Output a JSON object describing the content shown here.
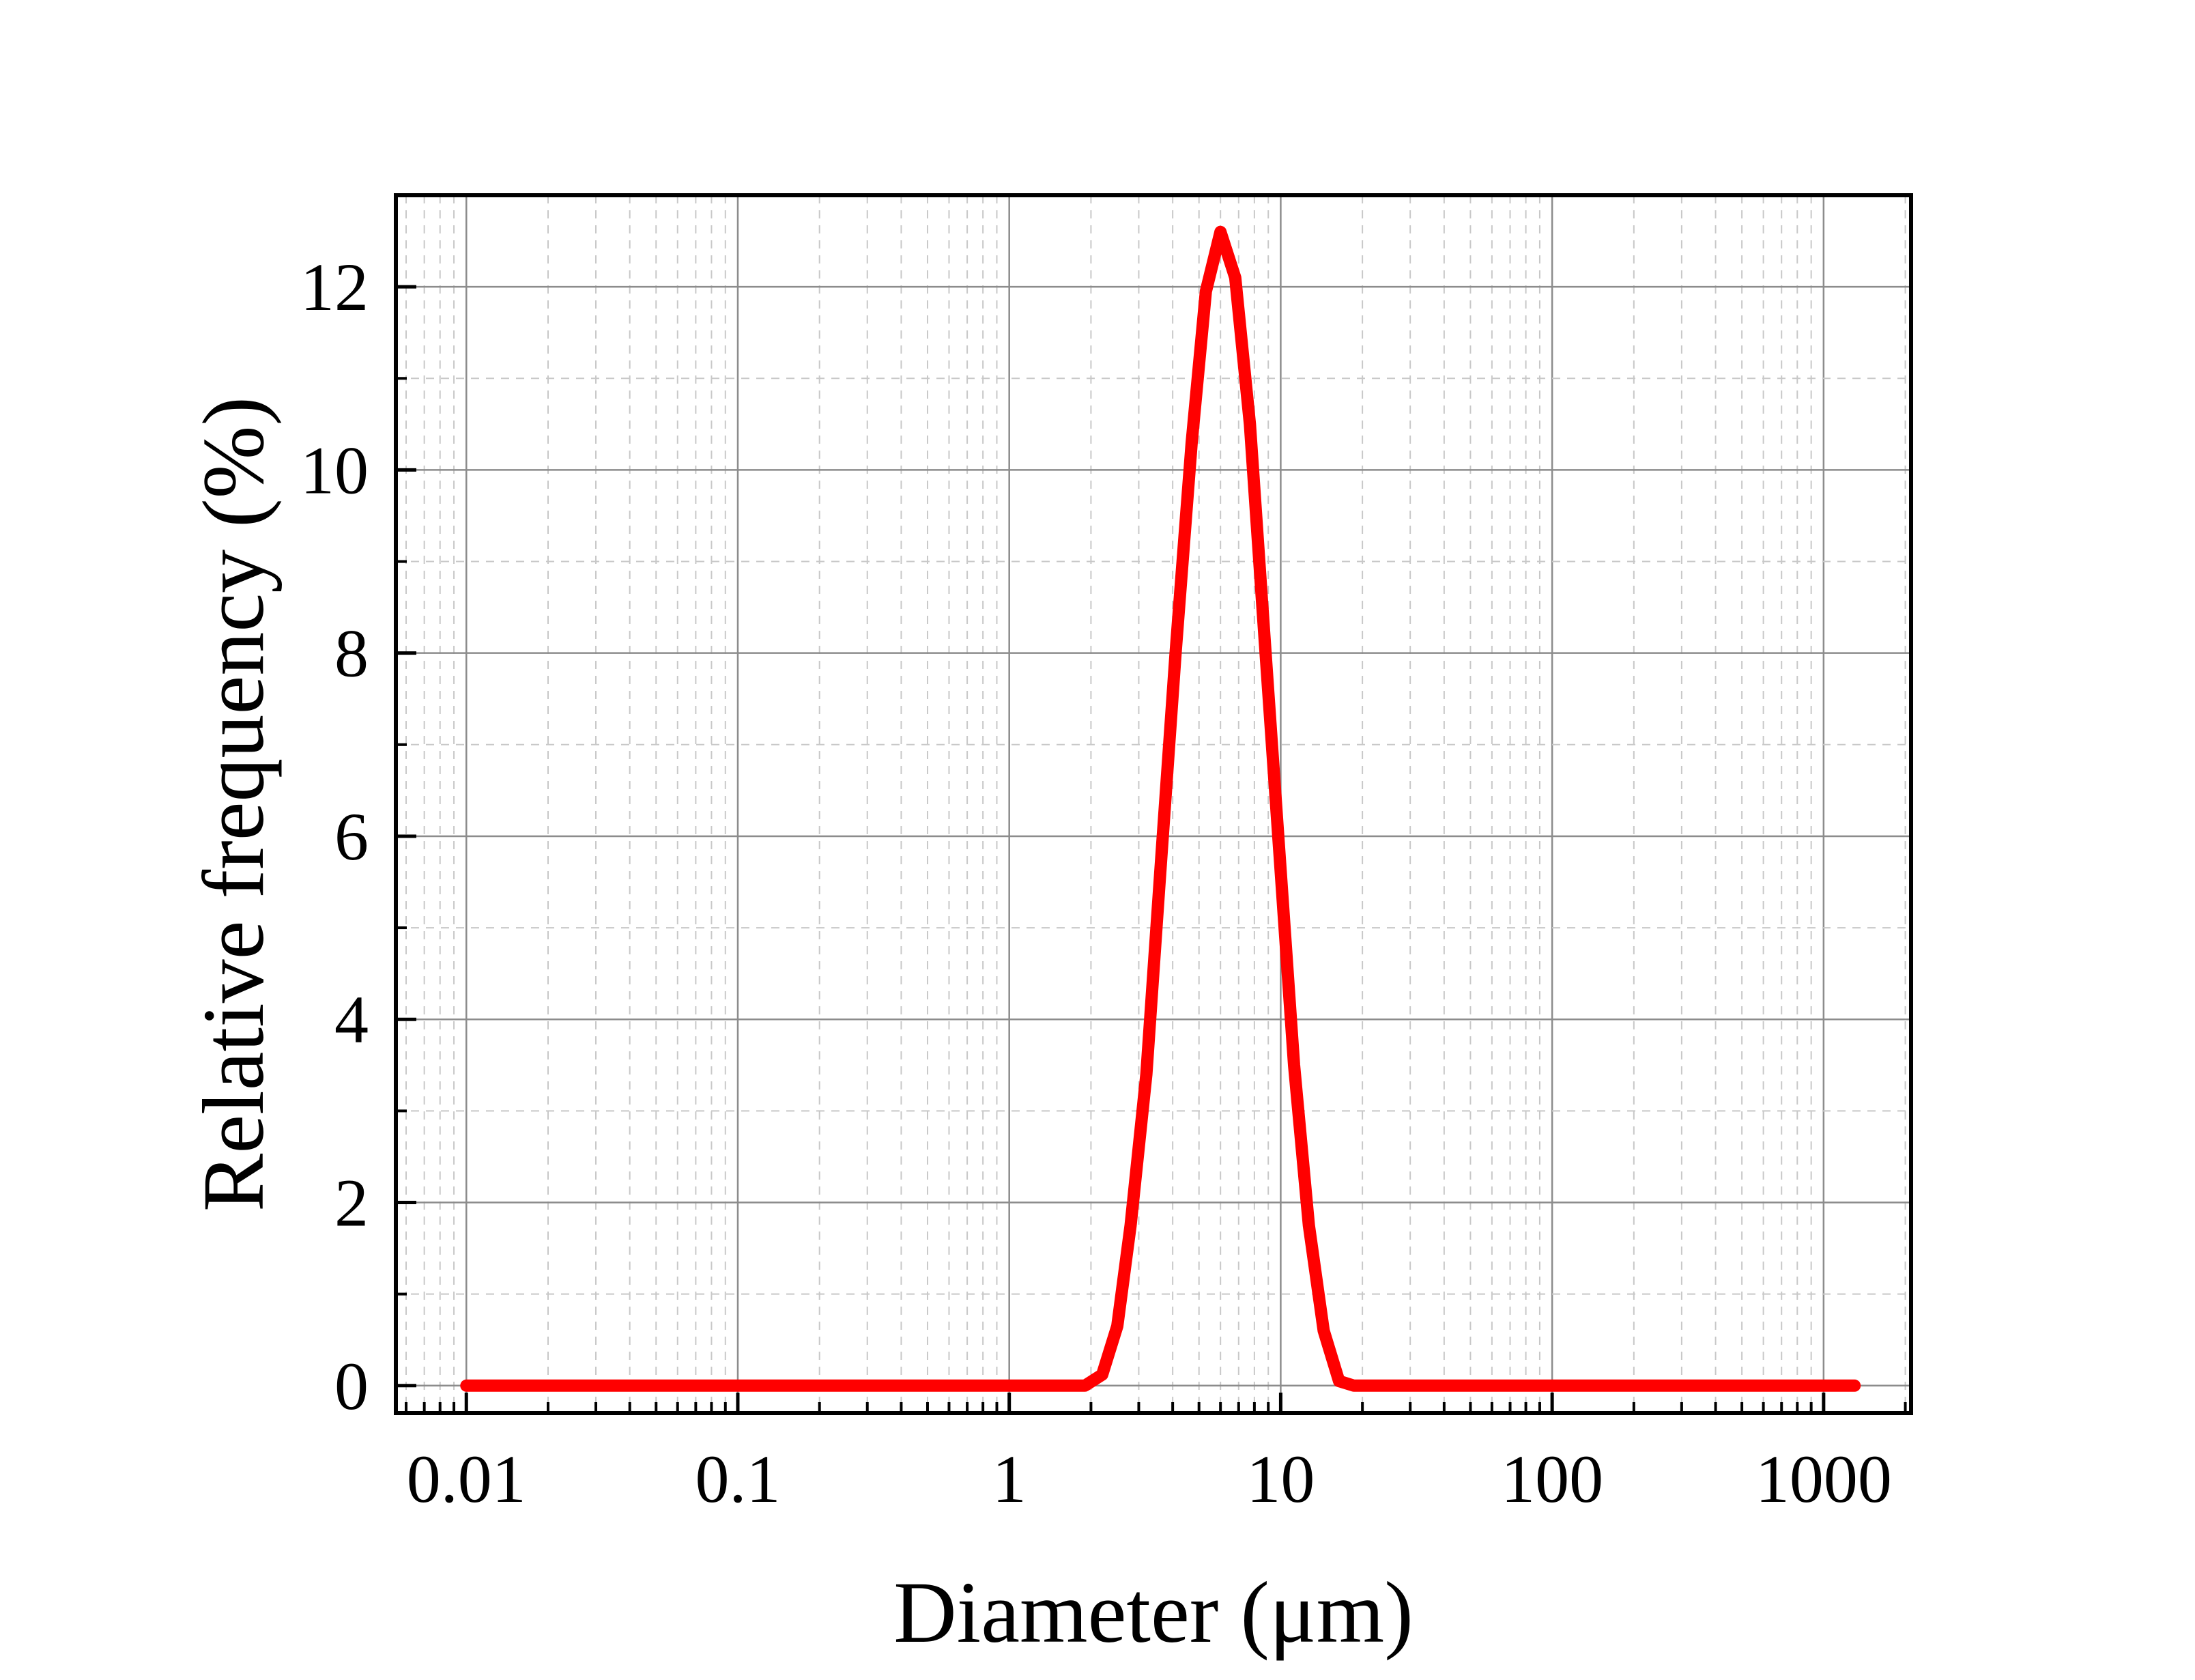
{
  "chart_data": {
    "type": "line",
    "xlabel": "Diameter (μm)",
    "ylabel": "Relative frequency (%)",
    "x_scale": "log",
    "xlim": [
      0.0055,
      2100
    ],
    "ylim": [
      -0.3,
      13
    ],
    "x_ticks": [
      {
        "value": 0.01,
        "label": "0.01"
      },
      {
        "value": 0.1,
        "label": "0.1"
      },
      {
        "value": 1,
        "label": "1"
      },
      {
        "value": 10,
        "label": "10"
      },
      {
        "value": 100,
        "label": "100"
      },
      {
        "value": 1000,
        "label": "1000"
      }
    ],
    "y_ticks": [
      {
        "value": 0,
        "label": "0"
      },
      {
        "value": 2,
        "label": "2"
      },
      {
        "value": 4,
        "label": "4"
      },
      {
        "value": 6,
        "label": "6"
      },
      {
        "value": 8,
        "label": "8"
      },
      {
        "value": 10,
        "label": "10"
      },
      {
        "value": 12,
        "label": "12"
      }
    ],
    "y_minor_step": 1,
    "grid": true,
    "line_color": "#ff0000",
    "series": [
      {
        "x": [
          0.01,
          0.1,
          1,
          1.9,
          2.2,
          2.5,
          2.8,
          3.2,
          3.6,
          4.1,
          4.7,
          5.3,
          6.0,
          6.8,
          7.7,
          8.7,
          9.9,
          11.2,
          12.7,
          14.4,
          16.4,
          18.6,
          21.1,
          24,
          100,
          1000,
          1300
        ],
        "y": [
          0,
          0,
          0,
          0,
          0.12,
          0.65,
          1.75,
          3.4,
          5.6,
          8.0,
          10.3,
          11.95,
          12.6,
          12.1,
          10.5,
          8.2,
          5.8,
          3.5,
          1.75,
          0.6,
          0.05,
          0,
          0,
          0,
          0,
          0,
          0
        ]
      }
    ]
  }
}
